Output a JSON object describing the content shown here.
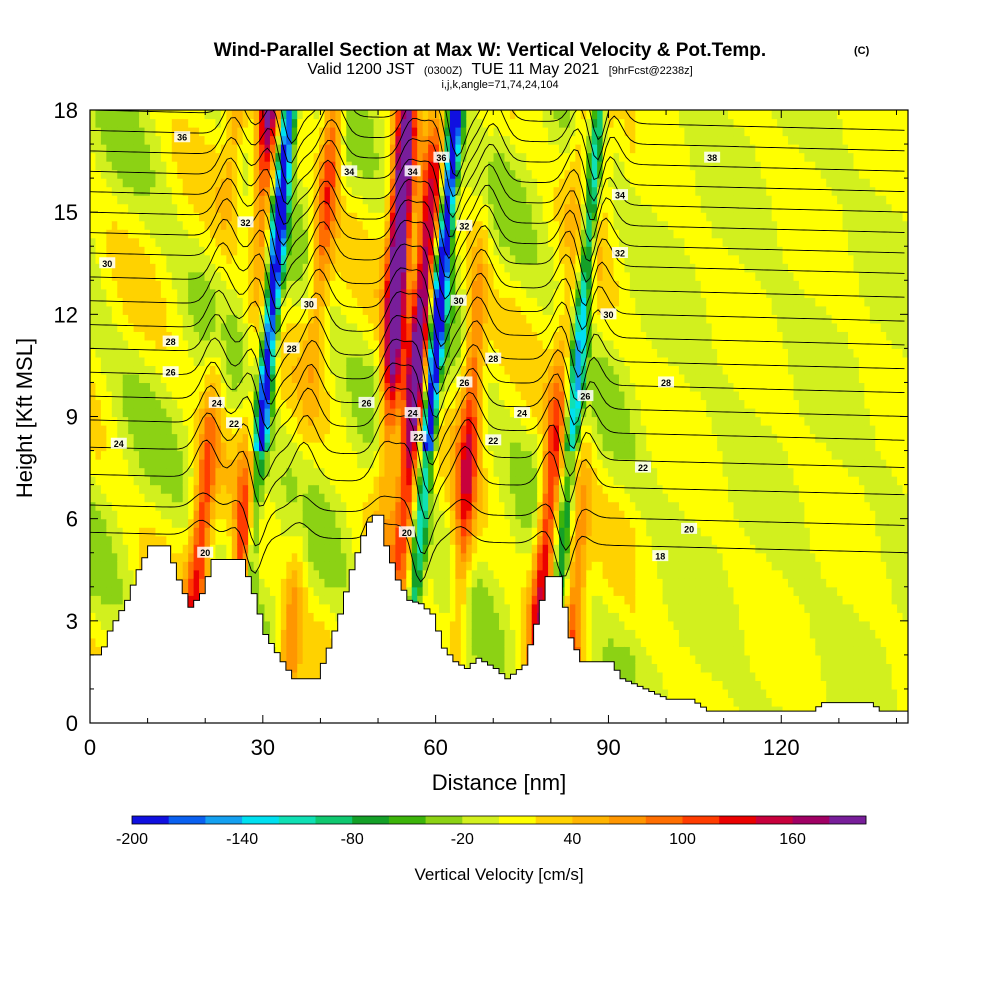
{
  "chart_data": {
    "type": "heatmap",
    "title": "Wind-Parallel Section at Max W: Vertical Velocity & Pot.Temp.",
    "title_mark": "(C)",
    "subtitle_prefix": "Valid 1200 JST",
    "subtitle_utc": "(0300Z)",
    "subtitle_date": "TUE 11 May 2021",
    "subtitle_fcst": "[9hrFcst@2238z]",
    "subtitle3": "i,j,k,angle=71,74,24,104",
    "xlabel": "Distance [nm]",
    "ylabel": "Height [Kft MSL]",
    "xlim": [
      0,
      142
    ],
    "ylim": [
      0,
      18
    ],
    "x_ticks": [
      "0",
      "30",
      "60",
      "90",
      "120"
    ],
    "y_ticks": [
      "0",
      "3",
      "6",
      "9",
      "12",
      "15",
      "18"
    ],
    "colorbar": {
      "label": "Vertical Velocity [cm/s]",
      "range": [
        -200,
        200
      ],
      "tick_labels": [
        "-200",
        "-140",
        "-80",
        "-20",
        "40",
        "100",
        "160"
      ],
      "colors": [
        "#1010e0",
        "#0a60f0",
        "#14a0f0",
        "#00e0f0",
        "#10e0b4",
        "#10c870",
        "#14a028",
        "#3cb40a",
        "#8cd214",
        "#d2f01e",
        "#ffff00",
        "#ffd200",
        "#ffb400",
        "#ff9600",
        "#ff6e00",
        "#ff3c00",
        "#eb0000",
        "#c8003c",
        "#a00064",
        "#781e9a"
      ]
    },
    "updraft_columns_nm": [
      21,
      28,
      38,
      52,
      56,
      66,
      81,
      86
    ],
    "downdraft_columns_nm": [
      30,
      59,
      84
    ],
    "terrain_nm_kft": [
      [
        0,
        2
      ],
      [
        1.5,
        2
      ],
      [
        3,
        2.7
      ],
      [
        6,
        3.6
      ],
      [
        8,
        4.5
      ],
      [
        10,
        5.2
      ],
      [
        13,
        5.2
      ],
      [
        15,
        4.2
      ],
      [
        17,
        3.4
      ],
      [
        19,
        3.8
      ],
      [
        21,
        4.8
      ],
      [
        24,
        4.8
      ],
      [
        26,
        4.8
      ],
      [
        28,
        3.8
      ],
      [
        30,
        2.6
      ],
      [
        33,
        1.8
      ],
      [
        35,
        1.3
      ],
      [
        39,
        1.3
      ],
      [
        41,
        2.2
      ],
      [
        43,
        3.2
      ],
      [
        45,
        4.5
      ],
      [
        47,
        5.5
      ],
      [
        48.5,
        6.1
      ],
      [
        50,
        6.1
      ],
      [
        51,
        5.2
      ],
      [
        53,
        4.2
      ],
      [
        55,
        3.6
      ],
      [
        57,
        3.5
      ],
      [
        59,
        3.2
      ],
      [
        61,
        2.2
      ],
      [
        63,
        1.8
      ],
      [
        65,
        1.6
      ],
      [
        67,
        1.9
      ],
      [
        70,
        1.6
      ],
      [
        72,
        1.3
      ],
      [
        75,
        1.7
      ],
      [
        77,
        2.9
      ],
      [
        79,
        4.3
      ],
      [
        81,
        4.3
      ],
      [
        83,
        2.5
      ],
      [
        85,
        1.8
      ],
      [
        90,
        1.8
      ],
      [
        92,
        1.3
      ],
      [
        96,
        1.0
      ],
      [
        100,
        0.7
      ],
      [
        104,
        0.7
      ],
      [
        107,
        0.35
      ],
      [
        125,
        0.35
      ],
      [
        127,
        0.6
      ],
      [
        135,
        0.6
      ],
      [
        137,
        0.35
      ],
      [
        142,
        0.35
      ]
    ],
    "theta_contour_labels": [
      "18",
      "20",
      "20",
      "20",
      "22",
      "22",
      "22",
      "22",
      "24",
      "24",
      "24",
      "24",
      "26",
      "26",
      "26",
      "26",
      "28",
      "28",
      "28",
      "28",
      "30",
      "30",
      "30",
      "30",
      "32",
      "32",
      "32",
      "34",
      "34",
      "34",
      "36",
      "36",
      "38"
    ]
  }
}
